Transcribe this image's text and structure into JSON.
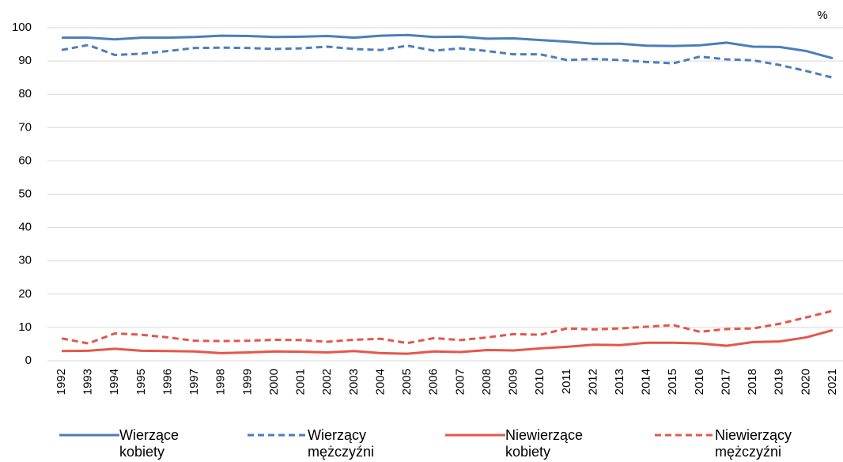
{
  "chart_data": {
    "type": "line",
    "y_unit": "%",
    "categories": [
      "1992",
      "1993",
      "1994",
      "1995",
      "1996",
      "1997",
      "1998",
      "1999",
      "2000",
      "2001",
      "2002",
      "2003",
      "2004",
      "2005",
      "2006",
      "2007",
      "2008",
      "2009",
      "2010",
      "2011",
      "2012",
      "2013",
      "2014",
      "2015",
      "2016",
      "2017",
      "2018",
      "2019",
      "2020",
      "2021"
    ],
    "series": [
      {
        "name": "Wierzące kobiety",
        "color": "#4a7ebb",
        "dashed": false,
        "values": [
          97,
          97,
          96.5,
          97,
          97,
          97.2,
          97.6,
          97.5,
          97.2,
          97.3,
          97.5,
          97,
          97.6,
          97.8,
          97.2,
          97.3,
          96.7,
          96.8,
          96.3,
          95.8,
          95.2,
          95.2,
          94.6,
          94.5,
          94.7,
          95.5,
          94.3,
          94.2,
          93,
          90.8
        ]
      },
      {
        "name": "Wierzący mężczyźni",
        "color": "#4a7ebb",
        "dashed": true,
        "values": [
          93.3,
          94.8,
          91.8,
          92.2,
          93,
          93.9,
          94,
          93.9,
          93.6,
          93.8,
          94.3,
          93.6,
          93.3,
          94.6,
          93.1,
          93.8,
          93,
          92,
          92,
          90.3,
          90.6,
          90.3,
          89.7,
          89.3,
          91.3,
          90.5,
          90.2,
          88.8,
          87,
          85
        ]
      },
      {
        "name": "Niewierzące kobiety",
        "color": "#e4574a",
        "dashed": false,
        "values": [
          2.9,
          3,
          3.6,
          3,
          2.9,
          2.8,
          2.3,
          2.5,
          2.8,
          2.7,
          2.5,
          2.9,
          2.3,
          2.1,
          2.8,
          2.6,
          3.2,
          3.1,
          3.7,
          4.2,
          4.8,
          4.7,
          5.4,
          5.4,
          5.2,
          4.5,
          5.6,
          5.8,
          7,
          9.2
        ]
      },
      {
        "name": "Niewierzący mężczyźni",
        "color": "#e4574a",
        "dashed": true,
        "values": [
          6.7,
          5.2,
          8.2,
          7.8,
          7,
          6,
          5.9,
          6,
          6.3,
          6.2,
          5.7,
          6.3,
          6.6,
          5.3,
          6.8,
          6.2,
          7,
          8,
          7.8,
          9.7,
          9.4,
          9.7,
          10.2,
          10.7,
          8.7,
          9.5,
          9.7,
          11.1,
          13,
          15
        ]
      }
    ],
    "ylim": [
      0,
      100
    ],
    "yticks": [
      0,
      10,
      20,
      30,
      40,
      50,
      60,
      70,
      80,
      90,
      100
    ],
    "grid": true
  }
}
